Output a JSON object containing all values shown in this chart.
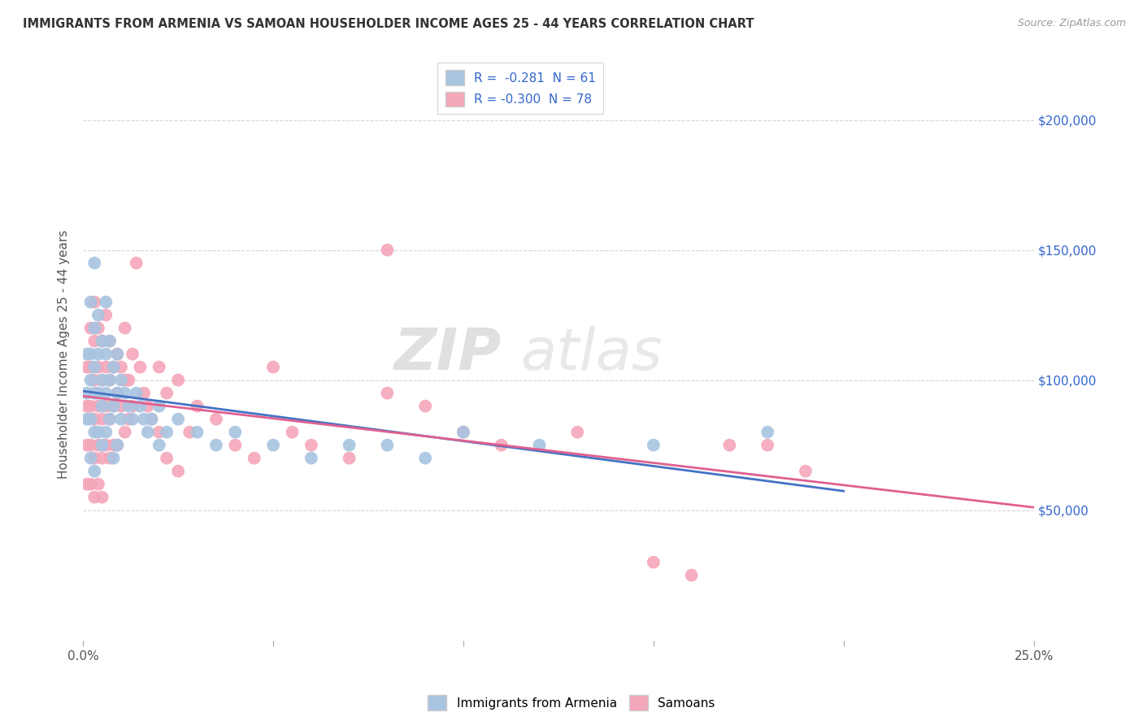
{
  "title": "IMMIGRANTS FROM ARMENIA VS SAMOAN HOUSEHOLDER INCOME AGES 25 - 44 YEARS CORRELATION CHART",
  "source": "Source: ZipAtlas.com",
  "ylabel": "Householder Income Ages 25 - 44 years",
  "xlim": [
    0.0,
    0.25
  ],
  "ylim": [
    0,
    220000
  ],
  "armenia_color": "#a8c4e0",
  "armenia_line_color": "#4472c4",
  "samoan_color": "#f4a7b9",
  "samoan_line_color": "#e06090",
  "watermark": "ZIPatlas",
  "armenia_scatter": [
    [
      0.001,
      110000
    ],
    [
      0.001,
      95000
    ],
    [
      0.001,
      85000
    ],
    [
      0.002,
      130000
    ],
    [
      0.002,
      110000
    ],
    [
      0.002,
      100000
    ],
    [
      0.002,
      85000
    ],
    [
      0.002,
      70000
    ],
    [
      0.003,
      145000
    ],
    [
      0.003,
      120000
    ],
    [
      0.003,
      105000
    ],
    [
      0.003,
      95000
    ],
    [
      0.003,
      80000
    ],
    [
      0.003,
      65000
    ],
    [
      0.004,
      125000
    ],
    [
      0.004,
      110000
    ],
    [
      0.004,
      95000
    ],
    [
      0.004,
      80000
    ],
    [
      0.005,
      115000
    ],
    [
      0.005,
      100000
    ],
    [
      0.005,
      90000
    ],
    [
      0.005,
      75000
    ],
    [
      0.006,
      130000
    ],
    [
      0.006,
      110000
    ],
    [
      0.006,
      95000
    ],
    [
      0.006,
      80000
    ],
    [
      0.007,
      115000
    ],
    [
      0.007,
      100000
    ],
    [
      0.007,
      85000
    ],
    [
      0.008,
      105000
    ],
    [
      0.008,
      90000
    ],
    [
      0.008,
      70000
    ],
    [
      0.009,
      110000
    ],
    [
      0.009,
      95000
    ],
    [
      0.009,
      75000
    ],
    [
      0.01,
      100000
    ],
    [
      0.01,
      85000
    ],
    [
      0.011,
      95000
    ],
    [
      0.012,
      90000
    ],
    [
      0.013,
      85000
    ],
    [
      0.014,
      95000
    ],
    [
      0.015,
      90000
    ],
    [
      0.016,
      85000
    ],
    [
      0.017,
      80000
    ],
    [
      0.018,
      85000
    ],
    [
      0.02,
      90000
    ],
    [
      0.02,
      75000
    ],
    [
      0.022,
      80000
    ],
    [
      0.025,
      85000
    ],
    [
      0.03,
      80000
    ],
    [
      0.035,
      75000
    ],
    [
      0.04,
      80000
    ],
    [
      0.05,
      75000
    ],
    [
      0.06,
      70000
    ],
    [
      0.07,
      75000
    ],
    [
      0.08,
      75000
    ],
    [
      0.09,
      70000
    ],
    [
      0.1,
      80000
    ],
    [
      0.12,
      75000
    ],
    [
      0.15,
      75000
    ],
    [
      0.18,
      80000
    ]
  ],
  "samoan_scatter": [
    [
      0.001,
      105000
    ],
    [
      0.001,
      90000
    ],
    [
      0.001,
      75000
    ],
    [
      0.001,
      60000
    ],
    [
      0.002,
      120000
    ],
    [
      0.002,
      105000
    ],
    [
      0.002,
      90000
    ],
    [
      0.002,
      75000
    ],
    [
      0.002,
      60000
    ],
    [
      0.003,
      130000
    ],
    [
      0.003,
      115000
    ],
    [
      0.003,
      100000
    ],
    [
      0.003,
      85000
    ],
    [
      0.003,
      70000
    ],
    [
      0.003,
      55000
    ],
    [
      0.004,
      120000
    ],
    [
      0.004,
      105000
    ],
    [
      0.004,
      90000
    ],
    [
      0.004,
      75000
    ],
    [
      0.004,
      60000
    ],
    [
      0.005,
      115000
    ],
    [
      0.005,
      100000
    ],
    [
      0.005,
      85000
    ],
    [
      0.005,
      70000
    ],
    [
      0.005,
      55000
    ],
    [
      0.006,
      125000
    ],
    [
      0.006,
      105000
    ],
    [
      0.006,
      90000
    ],
    [
      0.006,
      75000
    ],
    [
      0.007,
      115000
    ],
    [
      0.007,
      100000
    ],
    [
      0.007,
      85000
    ],
    [
      0.007,
      70000
    ],
    [
      0.008,
      105000
    ],
    [
      0.008,
      90000
    ],
    [
      0.008,
      75000
    ],
    [
      0.009,
      110000
    ],
    [
      0.009,
      95000
    ],
    [
      0.009,
      75000
    ],
    [
      0.01,
      105000
    ],
    [
      0.01,
      90000
    ],
    [
      0.011,
      120000
    ],
    [
      0.011,
      100000
    ],
    [
      0.011,
      80000
    ],
    [
      0.012,
      100000
    ],
    [
      0.012,
      85000
    ],
    [
      0.013,
      110000
    ],
    [
      0.013,
      90000
    ],
    [
      0.014,
      145000
    ],
    [
      0.015,
      105000
    ],
    [
      0.016,
      95000
    ],
    [
      0.017,
      90000
    ],
    [
      0.018,
      85000
    ],
    [
      0.02,
      105000
    ],
    [
      0.02,
      80000
    ],
    [
      0.022,
      95000
    ],
    [
      0.022,
      70000
    ],
    [
      0.025,
      100000
    ],
    [
      0.025,
      65000
    ],
    [
      0.028,
      80000
    ],
    [
      0.03,
      90000
    ],
    [
      0.035,
      85000
    ],
    [
      0.04,
      75000
    ],
    [
      0.045,
      70000
    ],
    [
      0.05,
      105000
    ],
    [
      0.055,
      80000
    ],
    [
      0.06,
      75000
    ],
    [
      0.07,
      70000
    ],
    [
      0.08,
      150000
    ],
    [
      0.08,
      95000
    ],
    [
      0.09,
      90000
    ],
    [
      0.1,
      80000
    ],
    [
      0.11,
      75000
    ],
    [
      0.13,
      80000
    ],
    [
      0.15,
      30000
    ],
    [
      0.16,
      25000
    ],
    [
      0.17,
      75000
    ],
    [
      0.18,
      75000
    ],
    [
      0.19,
      65000
    ]
  ]
}
